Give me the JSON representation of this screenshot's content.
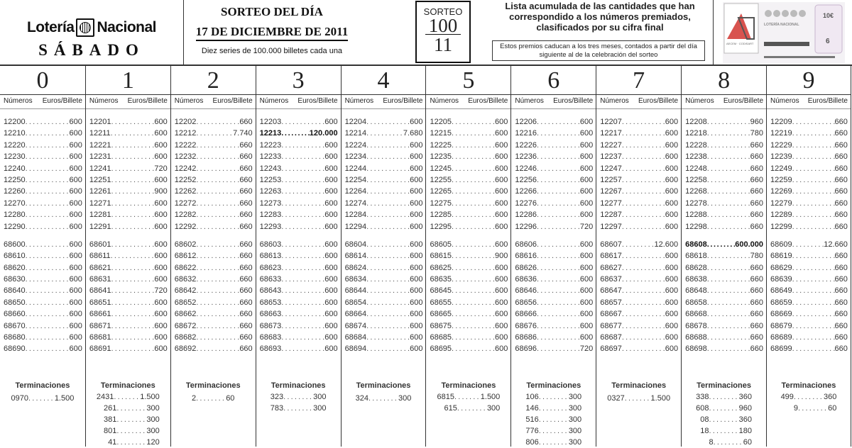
{
  "header": {
    "brand_left": "Lotería",
    "brand_right": "Nacional",
    "day": "SÁBADO",
    "title": "SORTEO DEL DÍA",
    "date": "17 DE DICIEMBRE DE 2011",
    "series_note": "Diez series de 100.000 billetes cada una",
    "sorteo_label": "SORTEO",
    "sorteo_number": "100",
    "sorteo_sub": "11",
    "list_description": "Lista acumulada de las cantidades que han correspondido a los números premiados, clasificados por su cifra final",
    "expiry_note": "Estos premios caducan a los tres meses, contados a partir del día siguiente al de la celebración del sorteo",
    "ticket_text": "LOTERÍA NACIONAL",
    "ticket_price": "10€",
    "ticket_serie": "6",
    "ticket_logo": "AECEM · CODISART"
  },
  "labels": {
    "numbers": "Números",
    "euros": "Euros/Billete",
    "terminaciones": "Terminaciones"
  },
  "colors": {
    "text": "#222222",
    "border": "#333333"
  },
  "columns": [
    {
      "digit": "0",
      "block1": [
        [
          "12200",
          "600"
        ],
        [
          "12210",
          "600"
        ],
        [
          "12220",
          "600"
        ],
        [
          "12230",
          "600"
        ],
        [
          "12240",
          "600"
        ],
        [
          "12250",
          "600"
        ],
        [
          "12260",
          "600"
        ],
        [
          "12270",
          "600"
        ],
        [
          "12280",
          "600"
        ],
        [
          "12290",
          "600"
        ]
      ],
      "block2": [
        [
          "68600",
          "600"
        ],
        [
          "68610",
          "600"
        ],
        [
          "68620",
          "600"
        ],
        [
          "68630",
          "600"
        ],
        [
          "68640",
          "600"
        ],
        [
          "68650",
          "600"
        ],
        [
          "68660",
          "600"
        ],
        [
          "68670",
          "600"
        ],
        [
          "68680",
          "600"
        ],
        [
          "68690",
          "600"
        ]
      ],
      "terminaciones": [
        [
          "0970",
          "1.500"
        ]
      ]
    },
    {
      "digit": "1",
      "block1": [
        [
          "12201",
          "600"
        ],
        [
          "12211",
          "600"
        ],
        [
          "12221",
          "600"
        ],
        [
          "12231",
          "600"
        ],
        [
          "12241",
          "720"
        ],
        [
          "12251",
          "600"
        ],
        [
          "12261",
          "900"
        ],
        [
          "12271",
          "600"
        ],
        [
          "12281",
          "600"
        ],
        [
          "12291",
          "600"
        ]
      ],
      "block2": [
        [
          "68601",
          "600"
        ],
        [
          "68611",
          "600"
        ],
        [
          "68621",
          "600"
        ],
        [
          "68631",
          "600"
        ],
        [
          "68641",
          "720"
        ],
        [
          "68651",
          "600"
        ],
        [
          "68661",
          "600"
        ],
        [
          "68671",
          "600"
        ],
        [
          "68681",
          "600"
        ],
        [
          "68691",
          "600"
        ]
      ],
      "terminaciones": [
        [
          "2431",
          "1.500"
        ],
        [
          "261",
          "300"
        ],
        [
          "381",
          "300"
        ],
        [
          "801",
          "300"
        ],
        [
          "41",
          "120"
        ]
      ]
    },
    {
      "digit": "2",
      "block1": [
        [
          "12202",
          "660"
        ],
        [
          "12212",
          "7.740"
        ],
        [
          "12222",
          "660"
        ],
        [
          "12232",
          "660"
        ],
        [
          "12242",
          "660"
        ],
        [
          "12252",
          "660"
        ],
        [
          "12262",
          "660"
        ],
        [
          "12272",
          "660"
        ],
        [
          "12282",
          "660"
        ],
        [
          "12292",
          "660"
        ]
      ],
      "block2": [
        [
          "68602",
          "660"
        ],
        [
          "68612",
          "660"
        ],
        [
          "68622",
          "660"
        ],
        [
          "68632",
          "660"
        ],
        [
          "68642",
          "660"
        ],
        [
          "68652",
          "660"
        ],
        [
          "68662",
          "660"
        ],
        [
          "68672",
          "660"
        ],
        [
          "68682",
          "660"
        ],
        [
          "68692",
          "660"
        ]
      ],
      "terminaciones": [
        [
          "2",
          "60"
        ]
      ]
    },
    {
      "digit": "3",
      "block1": [
        [
          "12203",
          "600"
        ],
        [
          "12213",
          "120.000"
        ],
        [
          "12223",
          "600"
        ],
        [
          "12233",
          "600"
        ],
        [
          "12243",
          "600"
        ],
        [
          "12253",
          "600"
        ],
        [
          "12263",
          "600"
        ],
        [
          "12273",
          "600"
        ],
        [
          "12283",
          "600"
        ],
        [
          "12293",
          "600"
        ]
      ],
      "block2": [
        [
          "68603",
          "600"
        ],
        [
          "68613",
          "600"
        ],
        [
          "68623",
          "600"
        ],
        [
          "68633",
          "600"
        ],
        [
          "68643",
          "600"
        ],
        [
          "68653",
          "600"
        ],
        [
          "68663",
          "600"
        ],
        [
          "68673",
          "600"
        ],
        [
          "68683",
          "600"
        ],
        [
          "68693",
          "600"
        ]
      ],
      "terminaciones": [
        [
          "323",
          "300"
        ],
        [
          "783",
          "300"
        ]
      ]
    },
    {
      "digit": "4",
      "block1": [
        [
          "12204",
          "600"
        ],
        [
          "12214",
          "7.680"
        ],
        [
          "12224",
          "600"
        ],
        [
          "12234",
          "600"
        ],
        [
          "12244",
          "600"
        ],
        [
          "12254",
          "600"
        ],
        [
          "12264",
          "600"
        ],
        [
          "12274",
          "600"
        ],
        [
          "12284",
          "600"
        ],
        [
          "12294",
          "600"
        ]
      ],
      "block2": [
        [
          "68604",
          "600"
        ],
        [
          "68614",
          "600"
        ],
        [
          "68624",
          "600"
        ],
        [
          "68634",
          "600"
        ],
        [
          "68644",
          "600"
        ],
        [
          "68654",
          "600"
        ],
        [
          "68664",
          "600"
        ],
        [
          "68674",
          "600"
        ],
        [
          "68684",
          "600"
        ],
        [
          "68694",
          "600"
        ]
      ],
      "terminaciones": [
        [
          "324",
          "300"
        ]
      ]
    },
    {
      "digit": "5",
      "block1": [
        [
          "12205",
          "600"
        ],
        [
          "12215",
          "600"
        ],
        [
          "12225",
          "600"
        ],
        [
          "12235",
          "600"
        ],
        [
          "12245",
          "600"
        ],
        [
          "12255",
          "600"
        ],
        [
          "12265",
          "600"
        ],
        [
          "12275",
          "600"
        ],
        [
          "12285",
          "600"
        ],
        [
          "12295",
          "600"
        ]
      ],
      "block2": [
        [
          "68605",
          "600"
        ],
        [
          "68615",
          "900"
        ],
        [
          "68625",
          "600"
        ],
        [
          "68635",
          "600"
        ],
        [
          "68645",
          "600"
        ],
        [
          "68655",
          "600"
        ],
        [
          "68665",
          "600"
        ],
        [
          "68675",
          "600"
        ],
        [
          "68685",
          "600"
        ],
        [
          "68695",
          "600"
        ]
      ],
      "terminaciones": [
        [
          "6815",
          "1.500"
        ],
        [
          "615",
          "300"
        ]
      ]
    },
    {
      "digit": "6",
      "block1": [
        [
          "12206",
          "600"
        ],
        [
          "12216",
          "600"
        ],
        [
          "12226",
          "600"
        ],
        [
          "12236",
          "600"
        ],
        [
          "12246",
          "600"
        ],
        [
          "12256",
          "600"
        ],
        [
          "12266",
          "600"
        ],
        [
          "12276",
          "600"
        ],
        [
          "12286",
          "600"
        ],
        [
          "12296",
          "720"
        ]
      ],
      "block2": [
        [
          "68606",
          "600"
        ],
        [
          "68616",
          "600"
        ],
        [
          "68626",
          "600"
        ],
        [
          "68636",
          "600"
        ],
        [
          "68646",
          "600"
        ],
        [
          "68656",
          "600"
        ],
        [
          "68666",
          "600"
        ],
        [
          "68676",
          "600"
        ],
        [
          "68686",
          "600"
        ],
        [
          "68696",
          "720"
        ]
      ],
      "terminaciones": [
        [
          "106",
          "300"
        ],
        [
          "146",
          "300"
        ],
        [
          "516",
          "300"
        ],
        [
          "776",
          "300"
        ],
        [
          "806",
          "300"
        ]
      ]
    },
    {
      "digit": "7",
      "block1": [
        [
          "12207",
          "600"
        ],
        [
          "12217",
          "600"
        ],
        [
          "12227",
          "600"
        ],
        [
          "12237",
          "600"
        ],
        [
          "12247",
          "600"
        ],
        [
          "12257",
          "600"
        ],
        [
          "12267",
          "600"
        ],
        [
          "12277",
          "600"
        ],
        [
          "12287",
          "600"
        ],
        [
          "12297",
          "600"
        ]
      ],
      "block2": [
        [
          "68607",
          "12.600"
        ],
        [
          "68617",
          "600"
        ],
        [
          "68627",
          "600"
        ],
        [
          "68637",
          "600"
        ],
        [
          "68647",
          "600"
        ],
        [
          "68657",
          "600"
        ],
        [
          "68667",
          "600"
        ],
        [
          "68677",
          "600"
        ],
        [
          "68687",
          "600"
        ],
        [
          "68697",
          "600"
        ]
      ],
      "terminaciones": [
        [
          "0327",
          "1.500"
        ]
      ]
    },
    {
      "digit": "8",
      "block1": [
        [
          "12208",
          "960"
        ],
        [
          "12218",
          "780"
        ],
        [
          "12228",
          "660"
        ],
        [
          "12238",
          "660"
        ],
        [
          "12248",
          "660"
        ],
        [
          "12258",
          "660"
        ],
        [
          "12268",
          "660"
        ],
        [
          "12278",
          "660"
        ],
        [
          "12288",
          "660"
        ],
        [
          "12298",
          "660"
        ]
      ],
      "block2": [
        [
          "68608",
          "600.000"
        ],
        [
          "68618",
          "780"
        ],
        [
          "68628",
          "660"
        ],
        [
          "68638",
          "660"
        ],
        [
          "68648",
          "660"
        ],
        [
          "68658",
          "660"
        ],
        [
          "68668",
          "660"
        ],
        [
          "68678",
          "660"
        ],
        [
          "68688",
          "660"
        ],
        [
          "68698",
          "660"
        ]
      ],
      "terminaciones": [
        [
          "338",
          "360"
        ],
        [
          "608",
          "960"
        ],
        [
          "08",
          "360"
        ],
        [
          "18",
          "180"
        ],
        [
          "8",
          "60"
        ]
      ]
    },
    {
      "digit": "9",
      "block1": [
        [
          "12209",
          "660"
        ],
        [
          "12219",
          "660"
        ],
        [
          "12229",
          "660"
        ],
        [
          "12239",
          "660"
        ],
        [
          "12249",
          "660"
        ],
        [
          "12259",
          "660"
        ],
        [
          "12269",
          "660"
        ],
        [
          "12279",
          "660"
        ],
        [
          "12289",
          "660"
        ],
        [
          "12299",
          "660"
        ]
      ],
      "block2": [
        [
          "68609",
          "12.660"
        ],
        [
          "68619",
          "660"
        ],
        [
          "68629",
          "660"
        ],
        [
          "68639",
          "660"
        ],
        [
          "68649",
          "660"
        ],
        [
          "68659",
          "660"
        ],
        [
          "68669",
          "660"
        ],
        [
          "68679",
          "660"
        ],
        [
          "68689",
          "660"
        ],
        [
          "68699",
          "660"
        ]
      ],
      "terminaciones": [
        [
          "499",
          "360"
        ],
        [
          "9",
          "60"
        ]
      ]
    }
  ],
  "highlighted_prizes": [
    "12213",
    "68608"
  ]
}
